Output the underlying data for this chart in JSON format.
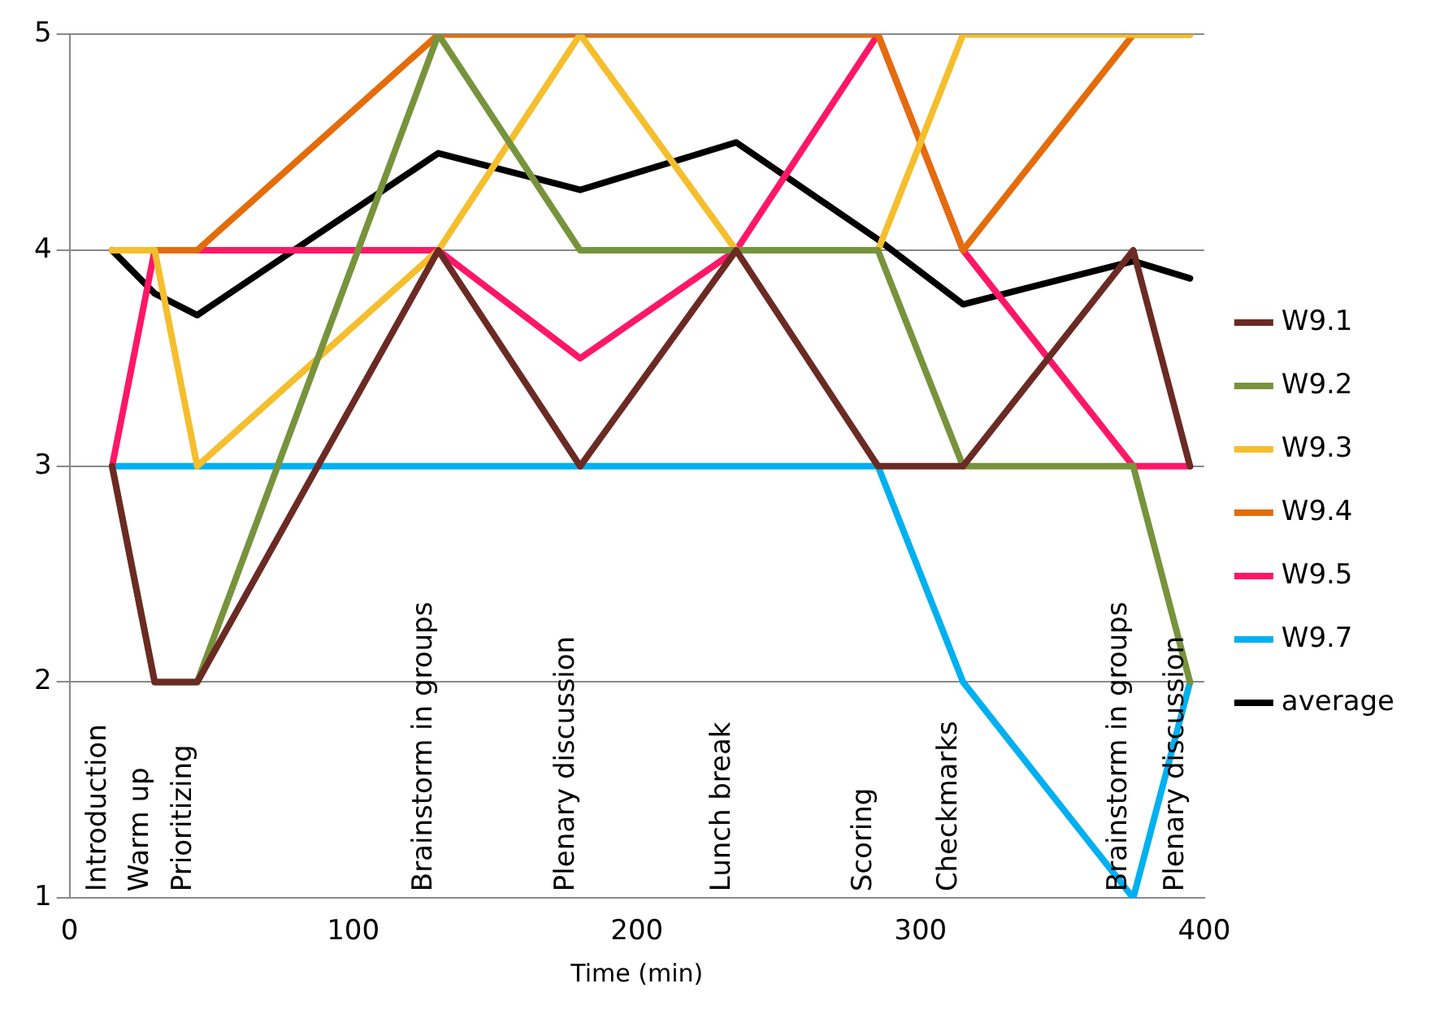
{
  "chart_data": {
    "type": "line",
    "xlabel": "Time (min)",
    "x": [
      15,
      30,
      45,
      130,
      180,
      235,
      285,
      315,
      375,
      395
    ],
    "xlim": [
      0,
      400
    ],
    "xticks": [
      0,
      100,
      200,
      300,
      400
    ],
    "ylim": [
      1,
      5
    ],
    "yticks": [
      1,
      2,
      3,
      4,
      5
    ],
    "grid": "y",
    "legend": "right",
    "marker": "none",
    "line_style": "solid",
    "series": [
      {
        "name": "W9.1",
        "color": "#6b2a23",
        "values": [
          3,
          2,
          2,
          4,
          3,
          4,
          3,
          3,
          4,
          3
        ]
      },
      {
        "name": "W9.2",
        "color": "#77933c",
        "values": [
          3,
          2,
          2,
          5,
          4,
          4,
          4,
          3,
          3,
          2
        ]
      },
      {
        "name": "W9.3",
        "color": "#f5be2c",
        "values": [
          4,
          4,
          3,
          4,
          5,
          4,
          4,
          5,
          5,
          5
        ]
      },
      {
        "name": "W9.4",
        "color": "#e46c0a",
        "values": [
          4,
          4,
          4,
          5,
          5,
          5,
          5,
          4,
          5,
          5
        ]
      },
      {
        "name": "W9.5",
        "color": "#ff1767",
        "values": [
          3,
          4,
          4,
          4,
          3.5,
          4,
          5,
          4,
          3,
          3
        ]
      },
      {
        "name": "W9.7",
        "color": "#00b0f0",
        "values": [
          3,
          3,
          3,
          3,
          3,
          3,
          3,
          2,
          1,
          2
        ]
      },
      {
        "name": "average",
        "color": "#000000",
        "values": [
          4,
          3.8,
          3.7,
          4.45,
          4.28,
          4.5,
          4.05,
          3.75,
          3.95,
          3.87
        ]
      }
    ],
    "annotations": [
      "Introduction",
      "Warm up",
      "Prioritizing",
      "Brainstorm in groups",
      "Plenary discussion",
      "Lunch break",
      "Scoring",
      "Checkmarks",
      "Brainstorm in groups",
      "Plenary discussion"
    ]
  }
}
